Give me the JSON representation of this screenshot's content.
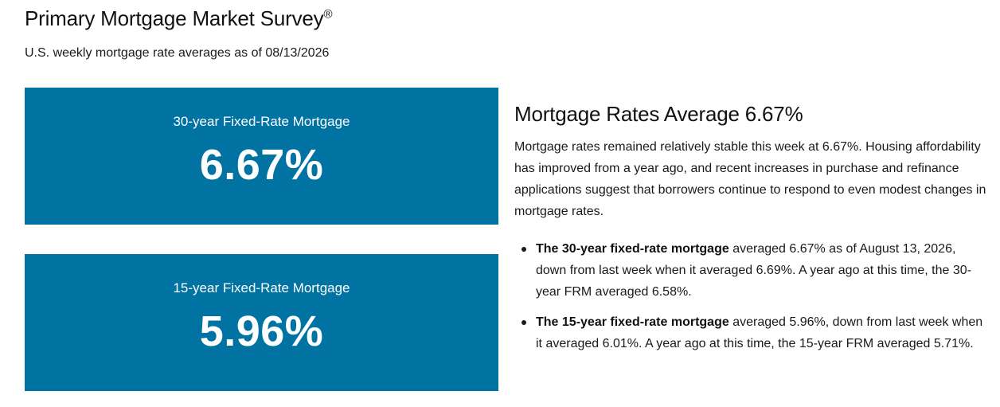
{
  "header": {
    "title": "Primary Mortgage Market Survey",
    "title_mark": "®",
    "subtitle": "U.S. weekly mortgage rate averages as of 08/13/2026"
  },
  "rate_cards": [
    {
      "label": "30-year Fixed-Rate Mortgage",
      "value": "6.67%"
    },
    {
      "label": "15-year Fixed-Rate Mortgage",
      "value": "5.96%"
    }
  ],
  "summary": {
    "heading": "Mortgage Rates Average 6.67%",
    "paragraph": "Mortgage rates remained relatively stable this week at 6.67%. Housing affordability has improved from a year ago, and recent increases in purchase and refinance applications suggest that borrowers continue to respond to even modest changes in mortgage rates.",
    "bullets": [
      {
        "bold": "The 30-year fixed-rate mortgage",
        "text": " averaged 6.67% as of August 13, 2026, down from last week when it averaged 6.69%. A year ago at this time, the 30-year FRM averaged 6.58%."
      },
      {
        "bold": "The 15-year fixed-rate mortgage",
        "text": " averaged 5.96%, down from last week when it averaged 6.01%. A year ago at this time, the 15-year FRM averaged 5.71%."
      }
    ]
  },
  "colors": {
    "card_background": "#0073a3",
    "card_text": "#ffffff"
  }
}
